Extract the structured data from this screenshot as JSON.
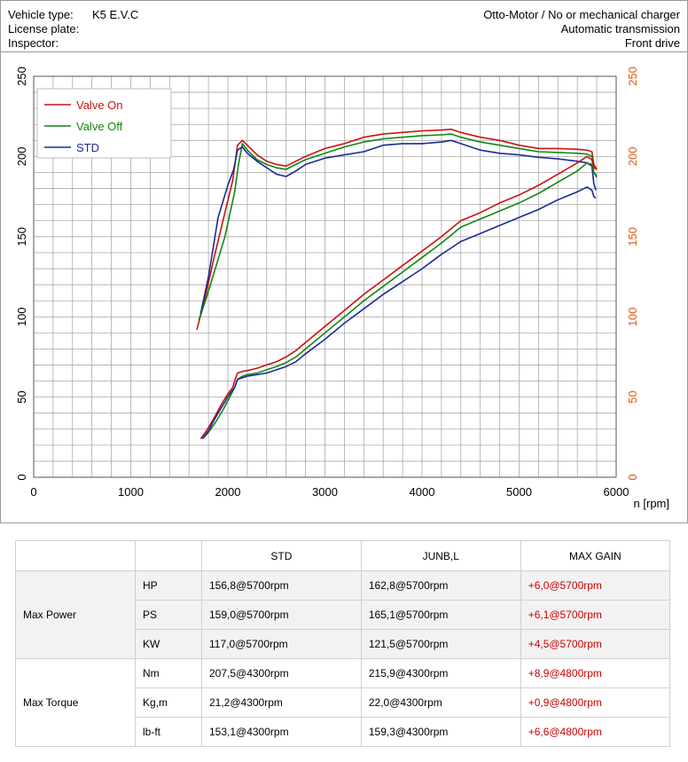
{
  "header": {
    "vehicle_type_label": "Vehicle type:",
    "vehicle_type_value": "K5 E.V.C",
    "license_plate_label": "License plate:",
    "inspector_label": "Inspector:",
    "engine": "Otto-Motor / No or mechanical charger",
    "transmission": "Automatic transmission",
    "drive": "Front drive"
  },
  "colors": {
    "valve_on": "#cc1111",
    "valve_off": "#118811",
    "std": "#1a2a9a",
    "right_axis": "#e05a10",
    "gain": "#cc0000"
  },
  "chart_data": {
    "type": "line",
    "xlabel": "n [rpm]",
    "xlim": [
      0,
      6000
    ],
    "ylim": [
      0,
      250
    ],
    "x_ticks": [
      "0",
      "1000",
      "2000",
      "3000",
      "4000",
      "5000",
      "6000"
    ],
    "y_ticks": [
      "0",
      "50",
      "100",
      "150",
      "200",
      "250"
    ],
    "y2_ticks": [
      "0",
      "50",
      "100",
      "150",
      "200",
      "250"
    ],
    "legend_position": "top-left",
    "grid": true,
    "series": [
      {
        "name": "Valve On",
        "color_key": "valve_on",
        "group": "torque",
        "x": [
          1680,
          1760,
          1850,
          1950,
          2050,
          2100,
          2150,
          2200,
          2300,
          2400,
          2500,
          2600,
          2700,
          2800,
          3000,
          3200,
          3400,
          3600,
          3800,
          4000,
          4200,
          4300,
          4400,
          4600,
          4800,
          5000,
          5200,
          5400,
          5600,
          5700,
          5750,
          5770,
          5800
        ],
        "y": [
          92,
          110,
          135,
          160,
          185,
          207,
          210,
          207,
          201,
          197,
          195,
          194,
          197,
          200,
          205,
          208,
          212,
          214,
          215,
          216,
          216.5,
          217,
          215,
          212,
          210,
          207,
          205,
          205,
          204.5,
          204,
          203,
          195,
          192
        ]
      },
      {
        "name": "Valve Off",
        "color_key": "valve_off",
        "group": "torque",
        "x": [
          1700,
          1780,
          1870,
          1970,
          2070,
          2110,
          2150,
          2200,
          2300,
          2400,
          2500,
          2600,
          2700,
          2800,
          3000,
          3200,
          3400,
          3600,
          3800,
          4000,
          4200,
          4300,
          4400,
          4600,
          4800,
          5000,
          5200,
          5400,
          5600,
          5700,
          5750,
          5770,
          5800
        ],
        "y": [
          98,
          112,
          130,
          150,
          178,
          195,
          208,
          204,
          198,
          195,
          193,
          192,
          195,
          198,
          202,
          206,
          209,
          211,
          212,
          213,
          213.5,
          214,
          212,
          209,
          207,
          205,
          203,
          202.5,
          202,
          201.5,
          200,
          190,
          187
        ]
      },
      {
        "name": "STD",
        "color_key": "std",
        "group": "torque",
        "x": [
          1720,
          1800,
          1900,
          2000,
          2060,
          2100,
          2150,
          2200,
          2300,
          2400,
          2500,
          2600,
          2700,
          2800,
          3000,
          3200,
          3400,
          3600,
          3800,
          4000,
          4200,
          4300,
          4400,
          4600,
          4800,
          5000,
          5200,
          5400,
          5600,
          5700,
          5750,
          5770,
          5790
        ],
        "y": [
          102,
          125,
          162,
          182,
          192,
          204,
          206,
          202,
          197,
          193,
          189,
          187.5,
          191,
          195,
          199,
          201,
          203,
          207,
          208,
          208,
          209,
          210,
          208,
          204,
          202,
          201,
          199.5,
          198.5,
          197,
          196,
          194,
          183,
          179
        ]
      },
      {
        "name": "Valve On",
        "color_key": "valve_on",
        "group": "power",
        "x": [
          1720,
          1780,
          1850,
          1930,
          2000,
          2050,
          2080,
          2100,
          2150,
          2200,
          2300,
          2400,
          2500,
          2600,
          2700,
          2800,
          3000,
          3200,
          3400,
          3600,
          3800,
          4000,
          4200,
          4300,
          4400,
          4600,
          4800,
          5000,
          5200,
          5400,
          5600,
          5700,
          5750,
          5770,
          5800
        ],
        "y": [
          24,
          29,
          36,
          45,
          52,
          56,
          62,
          65,
          66,
          66.5,
          68,
          70,
          72,
          75,
          79,
          84,
          94,
          104,
          114,
          123,
          132,
          141,
          150,
          155,
          160,
          165,
          171,
          176,
          182,
          189,
          196,
          200,
          198,
          193,
          192
        ]
      },
      {
        "name": "Valve Off",
        "color_key": "valve_off",
        "group": "power",
        "x": [
          1740,
          1800,
          1870,
          1950,
          2020,
          2070,
          2100,
          2150,
          2200,
          2300,
          2400,
          2500,
          2600,
          2700,
          2800,
          3000,
          3200,
          3400,
          3600,
          3800,
          4000,
          4200,
          4300,
          4400,
          4600,
          4800,
          5000,
          5200,
          5400,
          5600,
          5700,
          5750,
          5770,
          5800
        ],
        "y": [
          24,
          28,
          34,
          42,
          50,
          56,
          61,
          63,
          64,
          65,
          67,
          69,
          71.5,
          75,
          80,
          90,
          100,
          110,
          119,
          128,
          137,
          146,
          151,
          156,
          161,
          166,
          171,
          177,
          184,
          191,
          196,
          195,
          190,
          188
        ]
      },
      {
        "name": "STD",
        "color_key": "std",
        "group": "power",
        "x": [
          1740,
          1800,
          1870,
          1950,
          2020,
          2070,
          2100,
          2150,
          2200,
          2300,
          2400,
          2500,
          2600,
          2700,
          2800,
          3000,
          3200,
          3400,
          3600,
          3800,
          4000,
          4200,
          4300,
          4400,
          4600,
          4800,
          5000,
          5200,
          5400,
          5600,
          5700,
          5750,
          5770,
          5790
        ],
        "y": [
          24,
          29,
          37,
          45,
          52,
          56,
          61,
          62,
          63,
          64,
          65,
          67,
          69,
          72,
          77,
          86,
          96,
          105,
          114,
          122,
          130,
          139,
          143,
          147,
          152,
          157,
          162,
          167,
          173,
          178,
          181,
          179,
          175,
          174
        ]
      }
    ]
  },
  "legend": [
    {
      "label": "Valve On",
      "color_key": "valve_on"
    },
    {
      "label": "Valve Off",
      "color_key": "valve_off"
    },
    {
      "label": "STD",
      "color_key": "std"
    }
  ],
  "table": {
    "headers": [
      "",
      "",
      "STD",
      "JUNB,L",
      "MAX GAIN"
    ],
    "groups": [
      {
        "label": "Max Power",
        "rows": [
          {
            "unit": "HP",
            "std": "156,8@5700rpm",
            "junb": "162,8@5700rpm",
            "gain": "+6,0@5700rpm"
          },
          {
            "unit": "PS",
            "std": "159,0@5700rpm",
            "junb": "165,1@5700rpm",
            "gain": "+6,1@5700rpm"
          },
          {
            "unit": "KW",
            "std": "117,0@5700rpm",
            "junb": "121,5@5700rpm",
            "gain": "+4,5@5700rpm"
          }
        ]
      },
      {
        "label": "Max Torque",
        "rows": [
          {
            "unit": "Nm",
            "std": "207,5@4300rpm",
            "junb": "215,9@4300rpm",
            "gain": "+8,9@4800rpm"
          },
          {
            "unit": "Kg,m",
            "std": "21,2@4300rpm",
            "junb": "22,0@4300rpm",
            "gain": "+0,9@4800rpm"
          },
          {
            "unit": "lb-ft",
            "std": "153,1@4300rpm",
            "junb": "159,3@4300rpm",
            "gain": "+6,6@4800rpm"
          }
        ]
      }
    ]
  }
}
